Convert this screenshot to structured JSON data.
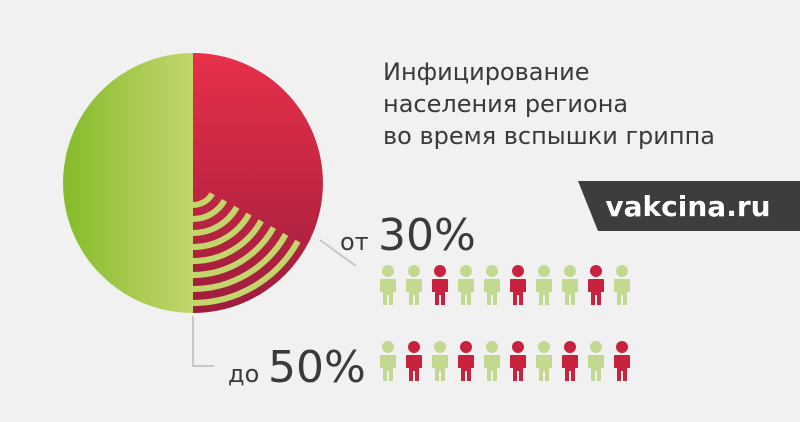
{
  "title": [
    "Инфицирование",
    "населения региона",
    "во время вспышки гриппа"
  ],
  "brand": "vakcina.ru",
  "low": {
    "prefix": "от",
    "value": "30%"
  },
  "high": {
    "prefix": "до",
    "value": "50%"
  }
}
